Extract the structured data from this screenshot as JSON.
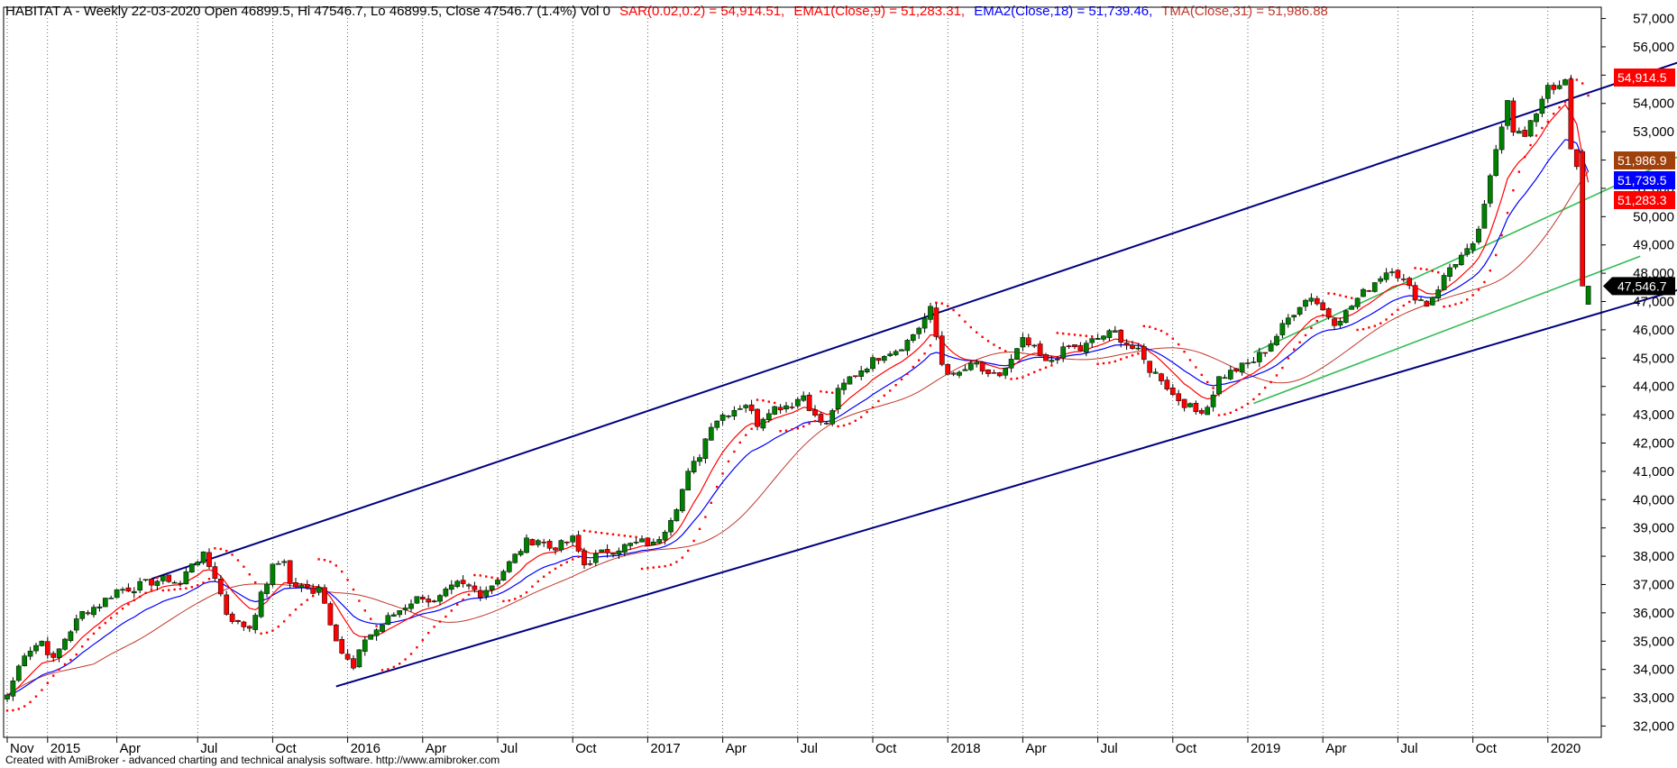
{
  "header": {
    "symbol": "HABITAT A - Weekly 22-03-2020 Open 46899.5, Hi 47546.7, Lo 46899.5, Close 47546.7 (1.4%) Vol 0",
    "sar": "SAR(0.02,0.2) = 54,914.51,",
    "ema1": "EMA1(Close,9) = 51,283.31,",
    "ema2": "EMA2(Close,18) = 51,739.46,",
    "tma": "TMA(Close,31) = 51,986.88"
  },
  "footer": {
    "credit": "Created with AmiBroker - advanced charting and technical analysis software. http://www.amibroker.com"
  },
  "colors": {
    "up": "#008000",
    "down": "#ff0000",
    "ema1": "#ff0000",
    "ema2": "#0000ff",
    "tma": "#c0392b",
    "sar": "#ff0000",
    "channel": "#000080",
    "inner": "#33bb55",
    "tag_sar": "#ff0000",
    "tag_ema1": "#ff0000",
    "tag_ema2": "#0000ff",
    "tag_tma": "#a0400a",
    "tag_close": "#000000"
  },
  "chart_data": {
    "type": "candlestick",
    "ylim": [
      31600,
      57400
    ],
    "y_ticks": [
      "32,000",
      "33,000",
      "34,000",
      "35,000",
      "36,000",
      "37,000",
      "38,000",
      "39,000",
      "40,000",
      "41,000",
      "42,000",
      "43,000",
      "44,000",
      "45,000",
      "46,000",
      "47,000",
      "48,000",
      "49,000",
      "50,000",
      "51,000",
      "52,000",
      "53,000",
      "54,000",
      "55,000",
      "56,000",
      "57,000"
    ],
    "x_labels": [
      {
        "w": 0,
        "label": "Nov"
      },
      {
        "w": 7,
        "label": "2015"
      },
      {
        "w": 19,
        "label": "Apr"
      },
      {
        "w": 33,
        "label": "Jul"
      },
      {
        "w": 46,
        "label": "Oct"
      },
      {
        "w": 59,
        "label": "2016"
      },
      {
        "w": 72,
        "label": "Apr"
      },
      {
        "w": 85,
        "label": "Jul"
      },
      {
        "w": 98,
        "label": "Oct"
      },
      {
        "w": 111,
        "label": "2017"
      },
      {
        "w": 124,
        "label": "Apr"
      },
      {
        "w": 137,
        "label": "Jul"
      },
      {
        "w": 150,
        "label": "Oct"
      },
      {
        "w": 163,
        "label": "2018"
      },
      {
        "w": 176,
        "label": "Apr"
      },
      {
        "w": 189,
        "label": "Jul"
      },
      {
        "w": 202,
        "label": "Oct"
      },
      {
        "w": 215,
        "label": "2019"
      },
      {
        "w": 228,
        "label": "Apr"
      },
      {
        "w": 241,
        "label": "Jul"
      },
      {
        "w": 254,
        "label": "Oct"
      },
      {
        "w": 267,
        "label": "2020"
      }
    ],
    "anchors": [
      [
        0,
        33100
      ],
      [
        3,
        34600
      ],
      [
        6,
        35000
      ],
      [
        8,
        34300
      ],
      [
        10,
        35100
      ],
      [
        13,
        36000
      ],
      [
        16,
        36300
      ],
      [
        19,
        36800
      ],
      [
        22,
        36900
      ],
      [
        25,
        37100
      ],
      [
        28,
        37200
      ],
      [
        30,
        37000
      ],
      [
        32,
        37800
      ],
      [
        34,
        38000
      ],
      [
        36,
        37300
      ],
      [
        38,
        36000
      ],
      [
        40,
        35600
      ],
      [
        42,
        35500
      ],
      [
        44,
        36600
      ],
      [
        46,
        37600
      ],
      [
        48,
        37900
      ],
      [
        49,
        37000
      ],
      [
        51,
        36900
      ],
      [
        53,
        36800
      ],
      [
        54,
        37000
      ],
      [
        56,
        35700
      ],
      [
        58,
        34600
      ],
      [
        60,
        34000
      ],
      [
        62,
        35100
      ],
      [
        64,
        35400
      ],
      [
        66,
        35800
      ],
      [
        68,
        36100
      ],
      [
        70,
        36400
      ],
      [
        72,
        36600
      ],
      [
        74,
        36300
      ],
      [
        76,
        36700
      ],
      [
        78,
        37000
      ],
      [
        80,
        36900
      ],
      [
        82,
        36700
      ],
      [
        84,
        37000
      ],
      [
        86,
        37500
      ],
      [
        88,
        38000
      ],
      [
        90,
        38500
      ],
      [
        92,
        38600
      ],
      [
        94,
        38300
      ],
      [
        96,
        38400
      ],
      [
        98,
        38600
      ],
      [
        100,
        37700
      ],
      [
        102,
        38000
      ],
      [
        104,
        38200
      ],
      [
        106,
        38300
      ],
      [
        108,
        38400
      ],
      [
        110,
        38500
      ],
      [
        112,
        38400
      ],
      [
        114,
        39000
      ],
      [
        116,
        39800
      ],
      [
        118,
        40900
      ],
      [
        120,
        41600
      ],
      [
        122,
        42700
      ],
      [
        124,
        43000
      ],
      [
        126,
        43200
      ],
      [
        128,
        43400
      ],
      [
        130,
        42700
      ],
      [
        132,
        43200
      ],
      [
        134,
        43300
      ],
      [
        136,
        43400
      ],
      [
        138,
        43700
      ],
      [
        140,
        42900
      ],
      [
        142,
        42600
      ],
      [
        144,
        43800
      ],
      [
        146,
        44300
      ],
      [
        148,
        44600
      ],
      [
        150,
        44900
      ],
      [
        152,
        45200
      ],
      [
        154,
        45300
      ],
      [
        156,
        45600
      ],
      [
        158,
        46100
      ],
      [
        160,
        46700
      ],
      [
        162,
        44800
      ],
      [
        164,
        44300
      ],
      [
        166,
        44600
      ],
      [
        168,
        44800
      ],
      [
        170,
        44300
      ],
      [
        172,
        44400
      ],
      [
        174,
        44900
      ],
      [
        176,
        45600
      ],
      [
        178,
        45300
      ],
      [
        180,
        44800
      ],
      [
        182,
        45100
      ],
      [
        184,
        45400
      ],
      [
        186,
        45300
      ],
      [
        188,
        45600
      ],
      [
        190,
        45800
      ],
      [
        192,
        45900
      ],
      [
        194,
        45500
      ],
      [
        196,
        45200
      ],
      [
        198,
        44600
      ],
      [
        200,
        44300
      ],
      [
        202,
        43700
      ],
      [
        204,
        43400
      ],
      [
        206,
        43100
      ],
      [
        208,
        43300
      ],
      [
        210,
        44300
      ],
      [
        212,
        44500
      ],
      [
        214,
        44700
      ],
      [
        216,
        44900
      ],
      [
        218,
        45300
      ],
      [
        220,
        45800
      ],
      [
        222,
        46400
      ],
      [
        224,
        46900
      ],
      [
        226,
        47200
      ],
      [
        228,
        46700
      ],
      [
        230,
        46300
      ],
      [
        232,
        46600
      ],
      [
        234,
        47100
      ],
      [
        236,
        47500
      ],
      [
        238,
        47900
      ],
      [
        240,
        48200
      ],
      [
        242,
        47700
      ],
      [
        244,
        47200
      ],
      [
        246,
        46900
      ],
      [
        248,
        47500
      ],
      [
        250,
        48200
      ],
      [
        252,
        48600
      ],
      [
        254,
        48900
      ],
      [
        256,
        50300
      ],
      [
        258,
        52400
      ],
      [
        260,
        54200
      ],
      [
        261,
        53100
      ],
      [
        263,
        52800
      ],
      [
        265,
        53700
      ],
      [
        267,
        54700
      ],
      [
        269,
        54500
      ],
      [
        270,
        54800
      ],
      [
        271,
        52300
      ],
      [
        272,
        51700
      ],
      [
        273,
        47546.7
      ],
      [
        274,
        47546.7
      ]
    ],
    "series": [
      {
        "name": "SAR(0.02,0.2)",
        "last": 54914.51
      },
      {
        "name": "EMA1(Close,9)",
        "last": 51283.31
      },
      {
        "name": "EMA2(Close,18)",
        "last": 51739.46
      },
      {
        "name": "TMA(Close,31)",
        "last": 51986.88
      }
    ],
    "last_bar": {
      "date": "22-03-2020",
      "open": 46899.5,
      "high": 47546.7,
      "low": 46899.5,
      "close": 47546.7,
      "change": "1.4%",
      "volume": 0
    },
    "trendlines": [
      {
        "name": "channel-upper",
        "from": [
          25,
          37200
        ],
        "to": [
          299,
          56100
        ]
      },
      {
        "name": "channel-lower",
        "from": [
          57,
          33400
        ],
        "to": [
          306,
          48400
        ]
      },
      {
        "name": "inner-upper",
        "from": [
          216,
          45200
        ],
        "to": [
          300,
          53100
        ]
      },
      {
        "name": "inner-lower",
        "from": [
          216,
          43400
        ],
        "to": [
          283,
          48600
        ]
      }
    ],
    "value_tags": [
      {
        "name": "sar",
        "text": "54,914.5",
        "value": 54914.51
      },
      {
        "name": "tma",
        "text": "51,986.9",
        "value": 51986.88
      },
      {
        "name": "ema2",
        "text": "51,739.5",
        "value": 51739.46
      },
      {
        "name": "ema1",
        "text": "51,283.3",
        "value": 51283.31
      },
      {
        "name": "close",
        "text": "47,546.7",
        "value": 47546.7
      }
    ]
  }
}
